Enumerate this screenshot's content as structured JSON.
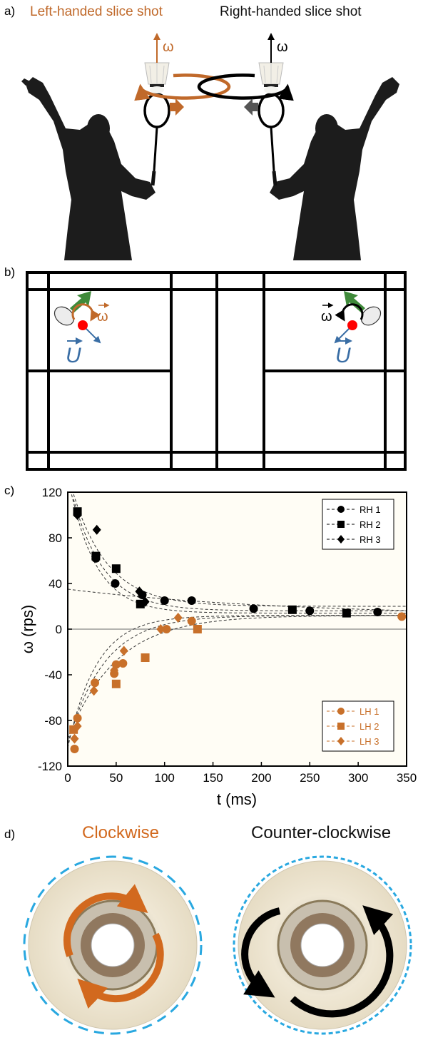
{
  "panel_a": {
    "label": "a)",
    "title_left": "Left-handed slice shot",
    "title_right": "Right-handed slice shot",
    "omega_symbol": "ω",
    "colors": {
      "left": "#c0692a",
      "right": "#000000"
    }
  },
  "panel_b": {
    "label": "b)",
    "omega_symbol": "ω",
    "velocity_symbol": "U",
    "colors": {
      "omega_left": "#c0692a",
      "omega_right": "#000000",
      "velocity": "#3a6ea5",
      "arrow": "#3f8a3a",
      "shuttle": "#ff0000"
    }
  },
  "panel_c": {
    "label": "c)",
    "chart_data": {
      "type": "scatter",
      "xlabel": "t (ms)",
      "ylabel": "ω (rps)",
      "xlim": [
        0,
        350
      ],
      "ylim": [
        -120,
        120
      ],
      "xticks": [
        "0",
        "50",
        "100",
        "150",
        "200",
        "250",
        "300",
        "350"
      ],
      "yticks": [
        "120",
        "80",
        "40",
        "0",
        "-40",
        "-80",
        "-120"
      ],
      "legend_rh": "top-right",
      "legend_lh": "bottom-right",
      "series": [
        {
          "name": "RH 1",
          "marker": "circle",
          "color": "#000000",
          "x": [
            10,
            29,
            49,
            77,
            100,
            128,
            192,
            250,
            320
          ],
          "y": [
            101,
            62,
            40,
            30,
            25,
            25,
            18,
            16,
            15
          ]
        },
        {
          "name": "RH 2",
          "marker": "square",
          "color": "#000000",
          "x": [
            10,
            29,
            50,
            75,
            232,
            288
          ],
          "y": [
            103,
            64,
            53,
            22,
            17,
            14
          ]
        },
        {
          "name": "RH 3",
          "marker": "diamond",
          "color": "#000000",
          "x": [
            10,
            30,
            74,
            80
          ],
          "y": [
            100,
            87,
            33,
            24
          ]
        },
        {
          "name": "LH 1",
          "marker": "circle",
          "color": "#c8702a",
          "x": [
            7,
            10,
            28,
            48,
            50,
            57,
            102,
            128,
            345
          ],
          "y": [
            -105,
            -78,
            -47,
            -39,
            -31,
            -30,
            0,
            7,
            11
          ]
        },
        {
          "name": "LH 2",
          "marker": "square",
          "color": "#c8702a",
          "x": [
            6,
            50,
            80,
            134
          ],
          "y": [
            -88,
            -48,
            -25,
            0
          ]
        },
        {
          "name": "LH 3",
          "marker": "diamond",
          "color": "#c8702a",
          "x": [
            7,
            10,
            27,
            48,
            58,
            96,
            114
          ],
          "y": [
            -96,
            -85,
            -54,
            -36,
            -19,
            0,
            10
          ]
        }
      ],
      "fit_curves_rh": [
        {
          "a": 116,
          "b": 20,
          "tau": 36
        },
        {
          "a": 118,
          "b": 16,
          "tau": 32
        },
        {
          "a": 120,
          "b": 14,
          "tau": 28
        },
        {
          "a": 24,
          "b": 11,
          "tau": 230
        }
      ],
      "fit_curves_lh": [
        {
          "a": -116,
          "b": 12,
          "tau": 30
        },
        {
          "a": -112,
          "b": 12,
          "tau": 38
        },
        {
          "a": -108,
          "b": 12,
          "tau": 50
        }
      ]
    }
  },
  "panel_d": {
    "label": "d)",
    "title_left": "Clockwise",
    "title_right": "Counter-clockwise",
    "colors": {
      "left_arrows": "#d2691e",
      "right_arrows": "#000000",
      "flow": "#29a8e0"
    }
  }
}
